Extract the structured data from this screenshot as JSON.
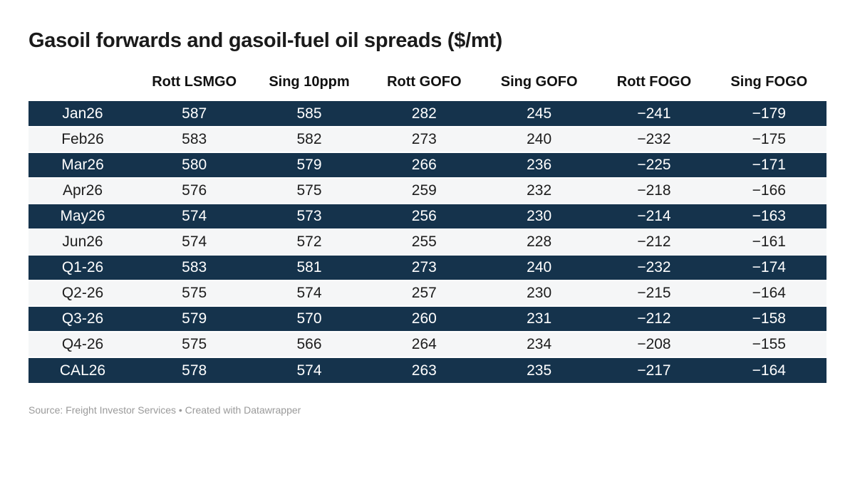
{
  "colors": {
    "title": "#1a1a1a",
    "header_text": "#111111",
    "row_dark": "#15334c",
    "row_light": "#f5f6f7",
    "text_dark_row": "#ffffff",
    "text_light_row": "#1d1d1d",
    "source_text": "#9a9a9a"
  },
  "chart_data": {
    "type": "table",
    "title": "Gasoil forwards and gasoil-fuel oil spreads ($/mt)",
    "columns": [
      "",
      "Rott LSMGO",
      "Sing 10ppm",
      "Rott GOFO",
      "Sing GOFO",
      "Rott FOGO",
      "Sing FOGO"
    ],
    "rows": [
      {
        "label": "Jan26",
        "values": [
          587,
          585,
          282,
          245,
          -241,
          -179
        ]
      },
      {
        "label": "Feb26",
        "values": [
          583,
          582,
          273,
          240,
          -232,
          -175
        ]
      },
      {
        "label": "Mar26",
        "values": [
          580,
          579,
          266,
          236,
          -225,
          -171
        ]
      },
      {
        "label": "Apr26",
        "values": [
          576,
          575,
          259,
          232,
          -218,
          -166
        ]
      },
      {
        "label": "May26",
        "values": [
          574,
          573,
          256,
          230,
          -214,
          -163
        ]
      },
      {
        "label": "Jun26",
        "values": [
          574,
          572,
          255,
          228,
          -212,
          -161
        ]
      },
      {
        "label": "Q1-26",
        "values": [
          583,
          581,
          273,
          240,
          -232,
          -174
        ]
      },
      {
        "label": "Q2-26",
        "values": [
          575,
          574,
          257,
          230,
          -215,
          -164
        ]
      },
      {
        "label": "Q3-26",
        "values": [
          579,
          570,
          260,
          231,
          -212,
          -158
        ]
      },
      {
        "label": "Q4-26",
        "values": [
          575,
          566,
          264,
          234,
          -208,
          -155
        ]
      },
      {
        "label": "CAL26",
        "values": [
          578,
          574,
          263,
          235,
          -217,
          -164
        ]
      }
    ],
    "layout": {
      "stripe_pattern": "odd-rows-dark",
      "cell_alignment": "center",
      "grid": false
    },
    "footer": {
      "source_label": "Source:",
      "source_name": "Freight Investor Services",
      "separator": "•",
      "attribution": "Created with Datawrapper"
    }
  }
}
